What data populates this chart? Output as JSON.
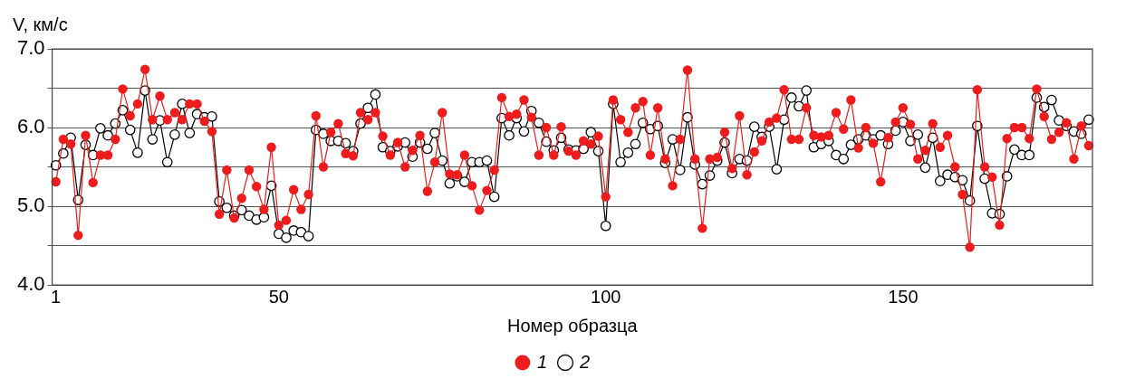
{
  "chart_data": {
    "type": "line",
    "ylabel": "V, км/с",
    "xlabel": "Номер образца",
    "categories": [
      "1",
      null,
      null,
      null,
      null,
      null,
      null,
      null,
      null,
      null,
      null,
      null,
      null,
      null,
      null,
      null,
      null,
      null,
      null,
      null,
      null,
      null,
      null,
      null,
      null,
      null,
      null,
      null,
      null,
      null,
      "50",
      null,
      null,
      null,
      null,
      null,
      null,
      null,
      null,
      null,
      null,
      null,
      null,
      null,
      null,
      null,
      null,
      null,
      null,
      null,
      null,
      null,
      null,
      null,
      null,
      null,
      null,
      null,
      null,
      null,
      null,
      null,
      null,
      null,
      null,
      null,
      null,
      null,
      null,
      null,
      null,
      null,
      null,
      null,
      "100",
      null,
      null,
      null,
      null,
      null,
      null,
      null,
      null,
      null,
      null,
      null,
      null,
      null,
      null,
      null,
      null,
      null,
      null,
      null,
      null,
      null,
      null,
      null,
      null,
      null,
      null,
      null,
      null,
      null,
      null,
      null,
      null,
      null,
      null,
      null,
      null,
      null,
      null,
      null,
      "150",
      null,
      null,
      null,
      null,
      null,
      null,
      null,
      null,
      null,
      null,
      null,
      null,
      null,
      null,
      null,
      null,
      null,
      null,
      null,
      null,
      null,
      null,
      null,
      null,
      null
    ],
    "series": [
      {
        "name": "1",
        "color": "#ee1c1c",
        "values": [
          5.31,
          5.85,
          5.79,
          4.63,
          5.9,
          5.3,
          5.65,
          5.65,
          5.85,
          6.49,
          6.15,
          6.3,
          6.74,
          6.1,
          6.4,
          6.1,
          6.19,
          6.1,
          6.3,
          6.3,
          6.08,
          5.95,
          4.9,
          5.46,
          4.85,
          5.1,
          5.46,
          5.25,
          4.96,
          5.75,
          4.76,
          4.82,
          5.21,
          4.96,
          5.15,
          6.15,
          5.5,
          5.94,
          6.05,
          5.67,
          5.64,
          6.19,
          6.1,
          6.19,
          5.89,
          5.65,
          5.81,
          5.5,
          5.71,
          5.9,
          5.19,
          5.56,
          6.19,
          5.41,
          5.4,
          5.65,
          5.26,
          4.95,
          5.2,
          5.46,
          6.38,
          6.14,
          6.17,
          6.35,
          6.13,
          5.65,
          6.0,
          5.65,
          6.01,
          5.7,
          5.65,
          5.83,
          5.79,
          5.89,
          5.12,
          6.35,
          6.1,
          5.94,
          6.25,
          6.33,
          5.65,
          6.25,
          5.6,
          5.26,
          5.85,
          6.73,
          5.6,
          4.72,
          5.6,
          5.62,
          5.94,
          5.48,
          6.15,
          5.4,
          5.69,
          5.83,
          6.07,
          6.12,
          6.48,
          5.85,
          5.85,
          6.25,
          5.9,
          5.88,
          5.9,
          6.19,
          5.98,
          6.35,
          5.74,
          6.0,
          5.8,
          5.31,
          5.87,
          6.07,
          6.25,
          6.04,
          5.6,
          5.71,
          6.05,
          5.75,
          5.9,
          5.5,
          5.15,
          4.48,
          6.48,
          5.5,
          5.37,
          4.76,
          5.86,
          6.0,
          6.0,
          5.86,
          6.49,
          6.14,
          5.85,
          5.94,
          6.06,
          5.6,
          6.02,
          5.77
        ]
      },
      {
        "name": "2",
        "color": "#000000",
        "values": [
          5.52,
          5.67,
          5.87,
          5.08,
          5.78,
          5.65,
          5.99,
          5.9,
          6.05,
          6.22,
          5.97,
          5.68,
          6.47,
          5.85,
          6.09,
          5.56,
          5.91,
          6.3,
          5.93,
          6.17,
          6.13,
          6.14,
          5.06,
          4.98,
          4.88,
          4.95,
          4.88,
          4.83,
          4.86,
          5.26,
          4.65,
          4.6,
          4.69,
          4.67,
          4.62,
          5.97,
          5.92,
          5.83,
          5.83,
          5.8,
          5.7,
          6.05,
          6.25,
          6.42,
          5.75,
          5.7,
          5.76,
          5.81,
          5.63,
          5.81,
          5.73,
          5.93,
          5.58,
          5.29,
          5.38,
          5.31,
          5.56,
          5.56,
          5.58,
          5.12,
          6.12,
          5.9,
          6.12,
          5.95,
          6.21,
          6.06,
          5.82,
          5.71,
          5.87,
          5.72,
          5.71,
          5.73,
          5.94,
          5.7,
          4.75,
          6.3,
          5.56,
          5.68,
          5.79,
          6.06,
          5.98,
          6.02,
          5.55,
          5.85,
          5.46,
          6.13,
          5.53,
          5.28,
          5.39,
          5.58,
          5.81,
          5.42,
          5.6,
          5.58,
          6.01,
          5.88,
          6.01,
          5.47,
          6.1,
          6.38,
          6.27,
          6.47,
          5.75,
          5.79,
          5.83,
          5.65,
          5.6,
          5.78,
          5.85,
          5.9,
          5.85,
          5.9,
          5.79,
          5.96,
          6.07,
          5.83,
          5.91,
          5.49,
          5.87,
          5.32,
          5.4,
          5.37,
          5.33,
          5.07,
          6.02,
          5.35,
          4.91,
          4.9,
          5.38,
          5.72,
          5.65,
          5.65,
          6.38,
          6.26,
          6.35,
          6.09,
          6.02,
          5.95,
          5.92,
          6.1
        ]
      }
    ],
    "ylim": [
      4,
      7
    ],
    "yticks": [
      {
        "value": 4,
        "label": "4.0"
      },
      {
        "value": 4.5,
        "label": null
      },
      {
        "value": 5,
        "label": "5.0"
      },
      {
        "value": 5.5,
        "label": null
      },
      {
        "value": 6,
        "label": "6.0"
      },
      {
        "value": 6.5,
        "label": null
      },
      {
        "value": 7,
        "label": "7.0"
      }
    ],
    "grid": "y",
    "legend": "bottom",
    "marker": "circle",
    "line_style": "solid"
  }
}
